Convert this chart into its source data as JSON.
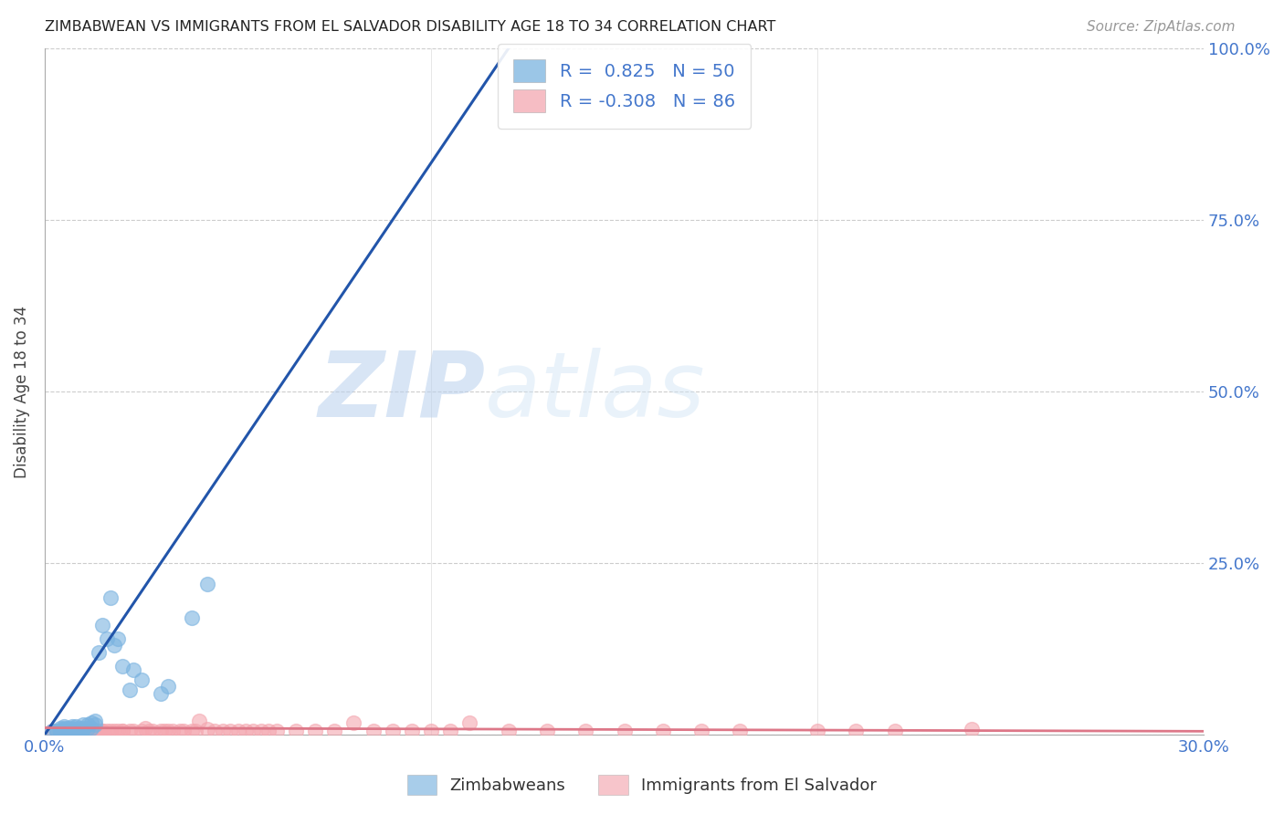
{
  "title": "ZIMBABWEAN VS IMMIGRANTS FROM EL SALVADOR DISABILITY AGE 18 TO 34 CORRELATION CHART",
  "source": "Source: ZipAtlas.com",
  "ylabel": "Disability Age 18 to 34",
  "xlim": [
    0.0,
    0.3
  ],
  "ylim": [
    0.0,
    1.0
  ],
  "blue_R": 0.825,
  "blue_N": 50,
  "pink_R": -0.308,
  "pink_N": 86,
  "blue_color": "#7ab3e0",
  "pink_color": "#f4a7b0",
  "blue_line_color": "#2255aa",
  "pink_line_color": "#dd7788",
  "watermark_zip": "ZIP",
  "watermark_atlas": "atlas",
  "legend_label_blue": "Zimbabweans",
  "legend_label_pink": "Immigrants from El Salvador",
  "blue_scatter_x": [
    0.002,
    0.003,
    0.003,
    0.004,
    0.004,
    0.004,
    0.005,
    0.005,
    0.005,
    0.005,
    0.005,
    0.005,
    0.006,
    0.006,
    0.006,
    0.006,
    0.007,
    0.007,
    0.007,
    0.007,
    0.007,
    0.008,
    0.008,
    0.008,
    0.009,
    0.009,
    0.009,
    0.01,
    0.01,
    0.01,
    0.011,
    0.011,
    0.012,
    0.012,
    0.013,
    0.013,
    0.014,
    0.015,
    0.016,
    0.017,
    0.018,
    0.019,
    0.02,
    0.022,
    0.023,
    0.025,
    0.03,
    0.032,
    0.038,
    0.042
  ],
  "blue_scatter_y": [
    0.005,
    0.005,
    0.005,
    0.005,
    0.005,
    0.01,
    0.005,
    0.005,
    0.005,
    0.008,
    0.01,
    0.012,
    0.005,
    0.005,
    0.008,
    0.01,
    0.005,
    0.005,
    0.008,
    0.01,
    0.012,
    0.005,
    0.008,
    0.012,
    0.005,
    0.008,
    0.01,
    0.008,
    0.01,
    0.015,
    0.01,
    0.015,
    0.01,
    0.018,
    0.015,
    0.02,
    0.12,
    0.16,
    0.14,
    0.2,
    0.13,
    0.14,
    0.1,
    0.065,
    0.095,
    0.08,
    0.06,
    0.07,
    0.17,
    0.22
  ],
  "pink_scatter_x": [
    0.002,
    0.003,
    0.004,
    0.004,
    0.005,
    0.005,
    0.005,
    0.005,
    0.006,
    0.006,
    0.006,
    0.007,
    0.007,
    0.007,
    0.008,
    0.008,
    0.008,
    0.009,
    0.009,
    0.009,
    0.01,
    0.01,
    0.01,
    0.01,
    0.011,
    0.011,
    0.012,
    0.012,
    0.013,
    0.013,
    0.014,
    0.014,
    0.015,
    0.015,
    0.016,
    0.017,
    0.018,
    0.019,
    0.02,
    0.02,
    0.022,
    0.023,
    0.025,
    0.026,
    0.027,
    0.028,
    0.03,
    0.031,
    0.032,
    0.033,
    0.035,
    0.036,
    0.038,
    0.039,
    0.04,
    0.042,
    0.044,
    0.046,
    0.048,
    0.05,
    0.052,
    0.054,
    0.056,
    0.058,
    0.06,
    0.065,
    0.07,
    0.075,
    0.08,
    0.085,
    0.09,
    0.095,
    0.1,
    0.105,
    0.11,
    0.12,
    0.13,
    0.14,
    0.15,
    0.16,
    0.17,
    0.18,
    0.2,
    0.21,
    0.22,
    0.24
  ],
  "pink_scatter_y": [
    0.005,
    0.005,
    0.005,
    0.005,
    0.005,
    0.005,
    0.005,
    0.005,
    0.005,
    0.005,
    0.005,
    0.005,
    0.005,
    0.005,
    0.005,
    0.005,
    0.005,
    0.005,
    0.005,
    0.005,
    0.005,
    0.005,
    0.005,
    0.005,
    0.005,
    0.005,
    0.005,
    0.005,
    0.005,
    0.005,
    0.005,
    0.005,
    0.005,
    0.005,
    0.005,
    0.005,
    0.005,
    0.005,
    0.005,
    0.005,
    0.005,
    0.005,
    0.005,
    0.01,
    0.005,
    0.005,
    0.005,
    0.005,
    0.005,
    0.005,
    0.005,
    0.005,
    0.005,
    0.005,
    0.02,
    0.008,
    0.005,
    0.005,
    0.005,
    0.005,
    0.005,
    0.005,
    0.005,
    0.005,
    0.005,
    0.005,
    0.005,
    0.005,
    0.018,
    0.005,
    0.005,
    0.005,
    0.005,
    0.005,
    0.018,
    0.005,
    0.005,
    0.005,
    0.005,
    0.005,
    0.005,
    0.005,
    0.005,
    0.005,
    0.005,
    0.008
  ],
  "blue_line_x": [
    0.0,
    0.12
  ],
  "blue_line_y": [
    0.0,
    1.0
  ],
  "pink_line_x": [
    0.0,
    0.3
  ],
  "pink_line_y": [
    0.01,
    0.005
  ]
}
